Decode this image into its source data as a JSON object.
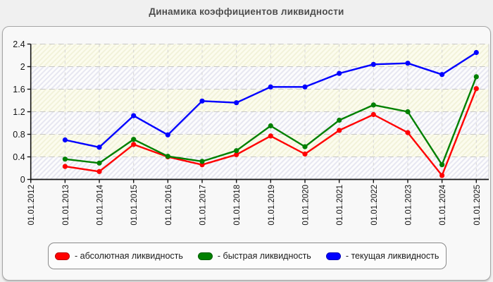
{
  "title": "Динамика коэффициентов ликвидности",
  "chart_data": {
    "type": "line",
    "title": "Динамика коэффициентов ликвидности",
    "categories": [
      "01.01.2012",
      "01.01.2013",
      "01.01.2014",
      "01.01.2015",
      "01.01.2016",
      "01.01.2017",
      "01.01.2018",
      "01.01.2019",
      "01.01.2020",
      "01.01.2021",
      "01.01.2022",
      "01.01.2023",
      "01.01.2024",
      "01.01.2025"
    ],
    "y_ticks": [
      "0",
      "0.4",
      "0.8",
      "1.2",
      "1.6",
      "2",
      "2.4"
    ],
    "ylim": [
      0,
      2.4
    ],
    "y_step": 0.4,
    "grid": "dashed-horizontal-and-vertical",
    "legend_position": "bottom",
    "series": [
      {
        "name": "абсолютная ликвидность",
        "legend_label": "- абсолютная ликвидность",
        "color": "#ff0000",
        "values": [
          null,
          0.23,
          0.14,
          0.62,
          0.4,
          0.26,
          0.44,
          0.77,
          0.45,
          0.87,
          1.15,
          0.83,
          0.07,
          1.61
        ]
      },
      {
        "name": "быстрая ликвидность",
        "legend_label": "- быстрая ликвидность",
        "color": "#008000",
        "values": [
          null,
          0.36,
          0.29,
          0.71,
          0.41,
          0.32,
          0.51,
          0.95,
          0.58,
          1.05,
          1.32,
          1.2,
          0.26,
          1.82
        ]
      },
      {
        "name": "текущая ликвидность",
        "legend_label": "- текущая ликвидность",
        "color": "#0000ff",
        "values": [
          null,
          0.7,
          0.57,
          1.13,
          0.79,
          1.39,
          1.36,
          1.64,
          1.64,
          1.88,
          2.04,
          2.06,
          1.86,
          2.25
        ]
      }
    ],
    "plot_style": {
      "band_colors": [
        "#fcfcee",
        "#fcfcfd"
      ],
      "hatch_line_colors": [
        "#f2f2da",
        "#e7e7f1"
      ],
      "h_grid_color": "#c8c8c8",
      "v_grid_color": "#d4d4d4",
      "axis_color": "#141414"
    }
  }
}
